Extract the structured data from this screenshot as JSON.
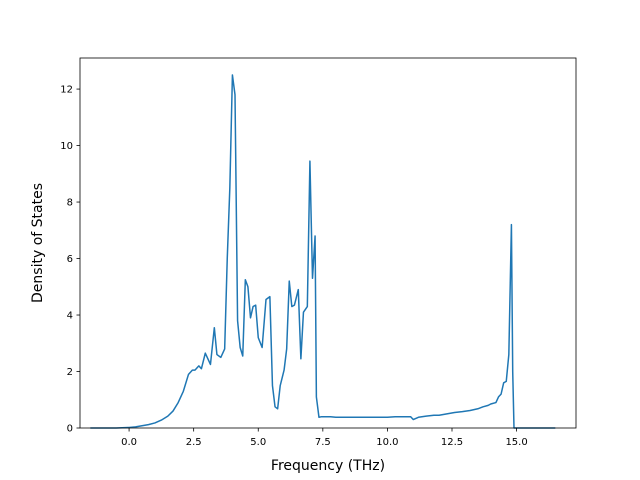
{
  "chart_data": {
    "type": "line",
    "title": "",
    "xlabel": "Frequency (THz)",
    "ylabel": "Density of States",
    "xlim": [
      -1.9,
      17.3
    ],
    "ylim": [
      0,
      13.1
    ],
    "xticks": [
      0.0,
      2.5,
      5.0,
      7.5,
      10.0,
      12.5,
      15.0
    ],
    "xtick_labels": [
      "0.0",
      "2.5",
      "5.0",
      "7.5",
      "10.0",
      "12.5",
      "15.0"
    ],
    "yticks": [
      0,
      2,
      4,
      6,
      8,
      10,
      12
    ],
    "ytick_labels": [
      "0",
      "2",
      "4",
      "6",
      "8",
      "10",
      "12"
    ],
    "grid": false,
    "legend": "none",
    "series": [
      {
        "color": "#1f77b4",
        "x": [
          -1.5,
          -1.0,
          -0.5,
          0.0,
          0.25,
          0.5,
          0.75,
          1.0,
          1.25,
          1.5,
          1.7,
          1.9,
          2.1,
          2.3,
          2.45,
          2.55,
          2.7,
          2.8,
          2.95,
          3.05,
          3.15,
          3.3,
          3.4,
          3.55,
          3.7,
          3.8,
          3.9,
          4.0,
          4.1,
          4.2,
          4.3,
          4.4,
          4.5,
          4.6,
          4.7,
          4.8,
          4.9,
          5.0,
          5.15,
          5.3,
          5.45,
          5.55,
          5.65,
          5.75,
          5.85,
          6.0,
          6.1,
          6.2,
          6.3,
          6.4,
          6.55,
          6.65,
          6.75,
          6.9,
          7.0,
          7.1,
          7.2,
          7.25,
          7.35,
          7.45,
          7.6,
          7.8,
          8.0,
          8.2,
          8.5,
          9.0,
          9.5,
          10.0,
          10.3,
          10.6,
          10.9,
          11.0,
          11.2,
          11.5,
          11.8,
          12.0,
          12.3,
          12.6,
          12.9,
          13.2,
          13.5,
          13.7,
          13.9,
          14.0,
          14.2,
          14.3,
          14.4,
          14.5,
          14.6,
          14.7,
          14.8,
          14.85,
          14.9,
          15.0,
          15.5,
          16.0,
          16.5
        ],
        "y": [
          0.0,
          0.0,
          0.0,
          0.02,
          0.04,
          0.08,
          0.12,
          0.18,
          0.28,
          0.42,
          0.6,
          0.9,
          1.3,
          1.9,
          2.05,
          2.05,
          2.2,
          2.1,
          2.65,
          2.45,
          2.25,
          3.55,
          2.6,
          2.5,
          2.8,
          6.0,
          8.5,
          12.5,
          11.8,
          3.8,
          2.85,
          2.55,
          5.25,
          5.0,
          3.9,
          4.3,
          4.35,
          3.2,
          2.85,
          4.55,
          4.65,
          1.5,
          0.75,
          0.68,
          1.5,
          2.05,
          2.8,
          5.2,
          4.3,
          4.35,
          4.9,
          2.45,
          4.1,
          4.3,
          9.45,
          5.3,
          6.8,
          1.1,
          0.38,
          0.4,
          0.4,
          0.4,
          0.38,
          0.38,
          0.38,
          0.38,
          0.38,
          0.38,
          0.4,
          0.4,
          0.4,
          0.3,
          0.38,
          0.42,
          0.45,
          0.45,
          0.5,
          0.55,
          0.58,
          0.62,
          0.68,
          0.75,
          0.8,
          0.85,
          0.9,
          1.1,
          1.2,
          1.6,
          1.65,
          2.6,
          7.2,
          2.0,
          0.0,
          0.0,
          0.0,
          0.0,
          0.0
        ]
      }
    ]
  }
}
